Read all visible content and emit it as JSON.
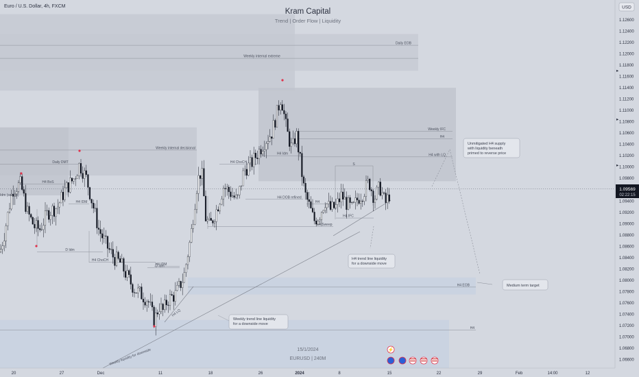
{
  "header": {
    "symbol": "Euro / U.S. Dollar, 4h, FXCM",
    "title": "Kram Capital",
    "subtitle": "Trend | Order Flow | Liquidity",
    "currency": "USD"
  },
  "watermark": {
    "date": "15/1/2024",
    "symbol": "EURUSD | 240M"
  },
  "price": {
    "current": "1.09569",
    "countdown": "02:22:15",
    "markers": [
      "1.11600",
      "1.10800",
      "1.10000"
    ]
  },
  "chart_data": {
    "type": "candlestick",
    "title": "Kram Capital",
    "ylim": [
      1.0645,
      1.1295
    ],
    "y_ticks": [
      "1.12600",
      "1.12400",
      "1.12200",
      "1.12000",
      "1.11800",
      "1.11600",
      "1.11400",
      "1.11200",
      "1.11000",
      "1.10800",
      "1.10600",
      "1.10400",
      "1.10200",
      "1.10000",
      "1.09800",
      "1.09600",
      "1.09400",
      "1.09200",
      "1.09000",
      "1.08800",
      "1.08600",
      "1.08400",
      "1.08200",
      "1.08000",
      "1.07800",
      "1.07600",
      "1.07400",
      "1.07200",
      "1.07000",
      "1.06800",
      "1.06600"
    ],
    "x_ticks": [
      "20",
      "27",
      "Dec",
      "11",
      "18",
      "26",
      "2024",
      "8",
      "15",
      "22",
      "29",
      "Feb",
      "14:00",
      "12"
    ],
    "path": [
      [
        0,
        1.085
      ],
      [
        6,
        1.088
      ],
      [
        18,
        1.096
      ],
      [
        30,
        1.097
      ],
      [
        40,
        1.092
      ],
      [
        50,
        1.0895
      ],
      [
        58,
        1.089
      ],
      [
        70,
        1.092
      ],
      [
        84,
        1.093
      ],
      [
        95,
        1.096
      ],
      [
        108,
        1.098
      ],
      [
        116,
        1.1005
      ],
      [
        126,
        1.098
      ],
      [
        134,
        1.094
      ],
      [
        144,
        1.089
      ],
      [
        156,
        1.086
      ],
      [
        166,
        1.084
      ],
      [
        176,
        1.083
      ],
      [
        186,
        1.0805
      ],
      [
        196,
        1.0785
      ],
      [
        206,
        1.0775
      ],
      [
        216,
        1.0765
      ],
      [
        225,
        1.0728
      ],
      [
        232,
        1.0755
      ],
      [
        238,
        1.0745
      ],
      [
        244,
        1.0765
      ],
      [
        256,
        1.0775
      ],
      [
        268,
        1.0805
      ],
      [
        278,
        1.0875
      ],
      [
        288,
        1.0975
      ],
      [
        294,
        1.0995
      ],
      [
        300,
        1.091
      ],
      [
        306,
        1.0895
      ],
      [
        316,
        1.0925
      ],
      [
        326,
        1.0965
      ],
      [
        336,
        1.0955
      ],
      [
        346,
        1.094
      ],
      [
        356,
        1.0995
      ],
      [
        366,
        1.1005
      ],
      [
        376,
        1.1025
      ],
      [
        386,
        1.1045
      ],
      [
        396,
        1.106
      ],
      [
        404,
        1.1095
      ],
      [
        410,
        1.1125
      ],
      [
        418,
        1.1065
      ],
      [
        426,
        1.103
      ],
      [
        432,
        1.106
      ],
      [
        438,
        1.101
      ],
      [
        444,
        1.0955
      ],
      [
        450,
        1.0935
      ],
      [
        458,
        1.0905
      ],
      [
        466,
        1.0915
      ],
      [
        474,
        1.094
      ],
      [
        482,
        1.0925
      ],
      [
        490,
        1.093
      ],
      [
        498,
        1.095
      ],
      [
        506,
        1.0935
      ],
      [
        514,
        1.0925
      ],
      [
        522,
        1.0945
      ],
      [
        530,
        1.0955
      ],
      [
        538,
        1.0975
      ],
      [
        546,
        1.0945
      ],
      [
        554,
        1.0965
      ],
      [
        562,
        1.0935
      ],
      [
        570,
        1.0957
      ]
    ],
    "zones": [
      {
        "label": "Daily EOB",
        "top": 1.1235,
        "bottom": 1.117
      },
      {
        "label": "Weekly internal extreme",
        "top": 1.127,
        "bottom": 1.1135
      },
      {
        "label": "Weekly IFC",
        "top": 1.114,
        "bottom": 1.0975
      },
      {
        "label": "Weekly internal decisional",
        "top": 1.107,
        "bottom": 1.0985
      },
      {
        "label": "Daily DMT",
        "top": 1.107,
        "bottom": 1.095
      },
      {
        "label": "H4 EOB",
        "top": 1.0805,
        "bottom": 1.0775
      },
      {
        "label": "Daily",
        "top": 1.073,
        "bottom": 1.0645
      }
    ],
    "levels": [
      {
        "label": "Daily EOB",
        "price": 1.1215
      },
      {
        "label": "Weekly internal extreme",
        "price": 1.1192
      },
      {
        "label": "Weekly IFC",
        "price": 1.1063
      },
      {
        "label": "H4",
        "price": 1.105
      },
      {
        "label": "H4 Idm",
        "price": 1.102
      },
      {
        "label": "H4 with LQ",
        "price": 1.1018
      },
      {
        "label": "H4 ChoCH",
        "price": 1.1005
      },
      {
        "label": "Daily DMT",
        "price": 1.1005
      },
      {
        "label": "Weekly internal decisional",
        "price": 1.103
      },
      {
        "label": "H4 BoS",
        "price": 1.097
      },
      {
        "label": "H4 DOB refined",
        "price": 1.0943
      },
      {
        "label": "H4",
        "price": 1.0935
      },
      {
        "label": "H4 IDM",
        "price": 1.0935
      },
      {
        "label": "H4 IFC",
        "price": 1.091
      },
      {
        "label": "H4 Sweep",
        "price": 1.0895
      },
      {
        "label": "D Idm",
        "price": 1.085
      },
      {
        "label": "H4 ChoCH",
        "price": 1.0832
      },
      {
        "label": "H4 IDM",
        "price": 1.0825
      },
      {
        "label": "D Idm",
        "price": 1.0822
      },
      {
        "label": "H4 EOB",
        "price": 1.0788
      },
      {
        "label": "H4",
        "price": 1.0712
      }
    ],
    "annotations": [
      "Unmitigated H4 supply with liquidity beneath primed to reverse price",
      "H4 trend line liquidity for a downside move",
      "Medium term target",
      "Weekly trend line liquidity for a downside move",
      "Weekly liquidity for downside",
      "H4 LQ",
      "Idm (sweep)"
    ]
  }
}
